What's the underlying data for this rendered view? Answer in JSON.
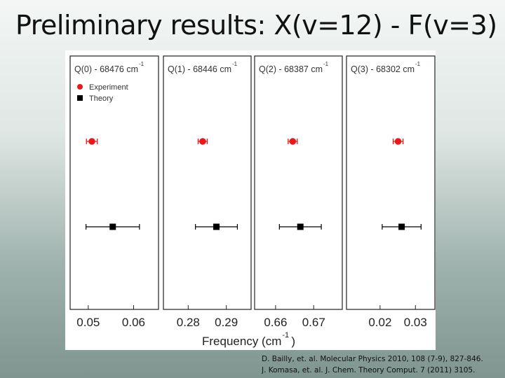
{
  "slide": {
    "title": "Preliminary results: X(v=12) - F(v=3)"
  },
  "references": [
    "D. Bailly, et. al. Molecular Physics 2010, 108 (7-9), 827-846.",
    "J. Komasa, et. al. J. Chem. Theory Comput. 7 (2011) 3105."
  ],
  "colors": {
    "experiment": "#e8191c",
    "theory": "#000000"
  },
  "chart_data": {
    "type": "scatter",
    "xlabel": "Frequency (cm",
    "xlabel_superscript": "-1",
    "ylabel": "",
    "legend": {
      "placement": "top-left of first panel",
      "entries": [
        {
          "name": "Experiment",
          "marker": "circle",
          "color": "#e8191c"
        },
        {
          "name": "Theory",
          "marker": "square",
          "color": "#000000"
        }
      ]
    },
    "grid": false,
    "panels": [
      {
        "label": "Q(0) - 68476 cm",
        "superscript": "-1",
        "xlim": [
          0.046,
          0.0655
        ],
        "ticks": [
          0.05,
          0.06
        ],
        "tick_labels": [
          "0.05",
          "0.06"
        ],
        "experiment": {
          "x": 0.0508,
          "err": 0.0012
        },
        "theory": {
          "x": 0.0554,
          "err": 0.0059
        }
      },
      {
        "label": "Q(1) - 68446 cm",
        "superscript": "-1",
        "xlim": [
          0.2735,
          0.2965
        ],
        "ticks": [
          0.28,
          0.29
        ],
        "tick_labels": [
          "0.28",
          "0.29"
        ],
        "experiment": {
          "x": 0.2838,
          "err": 0.0012
        },
        "theory": {
          "x": 0.2874,
          "err": 0.0055
        }
      },
      {
        "label": "Q(2) - 68387 cm",
        "superscript": "-1",
        "xlim": [
          0.6545,
          0.6775
        ],
        "ticks": [
          0.66,
          0.67
        ],
        "tick_labels": [
          "0.66",
          "0.67"
        ],
        "experiment": {
          "x": 0.6645,
          "err": 0.0012
        },
        "theory": {
          "x": 0.6665,
          "err": 0.0055
        }
      },
      {
        "label": "Q(3) - 68302 cm",
        "superscript": "-1",
        "xlim": [
          0.0105,
          0.0355
        ],
        "ticks": [
          0.02,
          0.03
        ],
        "tick_labels": [
          "0.02",
          "0.03"
        ],
        "experiment": {
          "x": 0.0251,
          "err": 0.0014
        },
        "theory": {
          "x": 0.0261,
          "err": 0.0055
        }
      }
    ]
  }
}
